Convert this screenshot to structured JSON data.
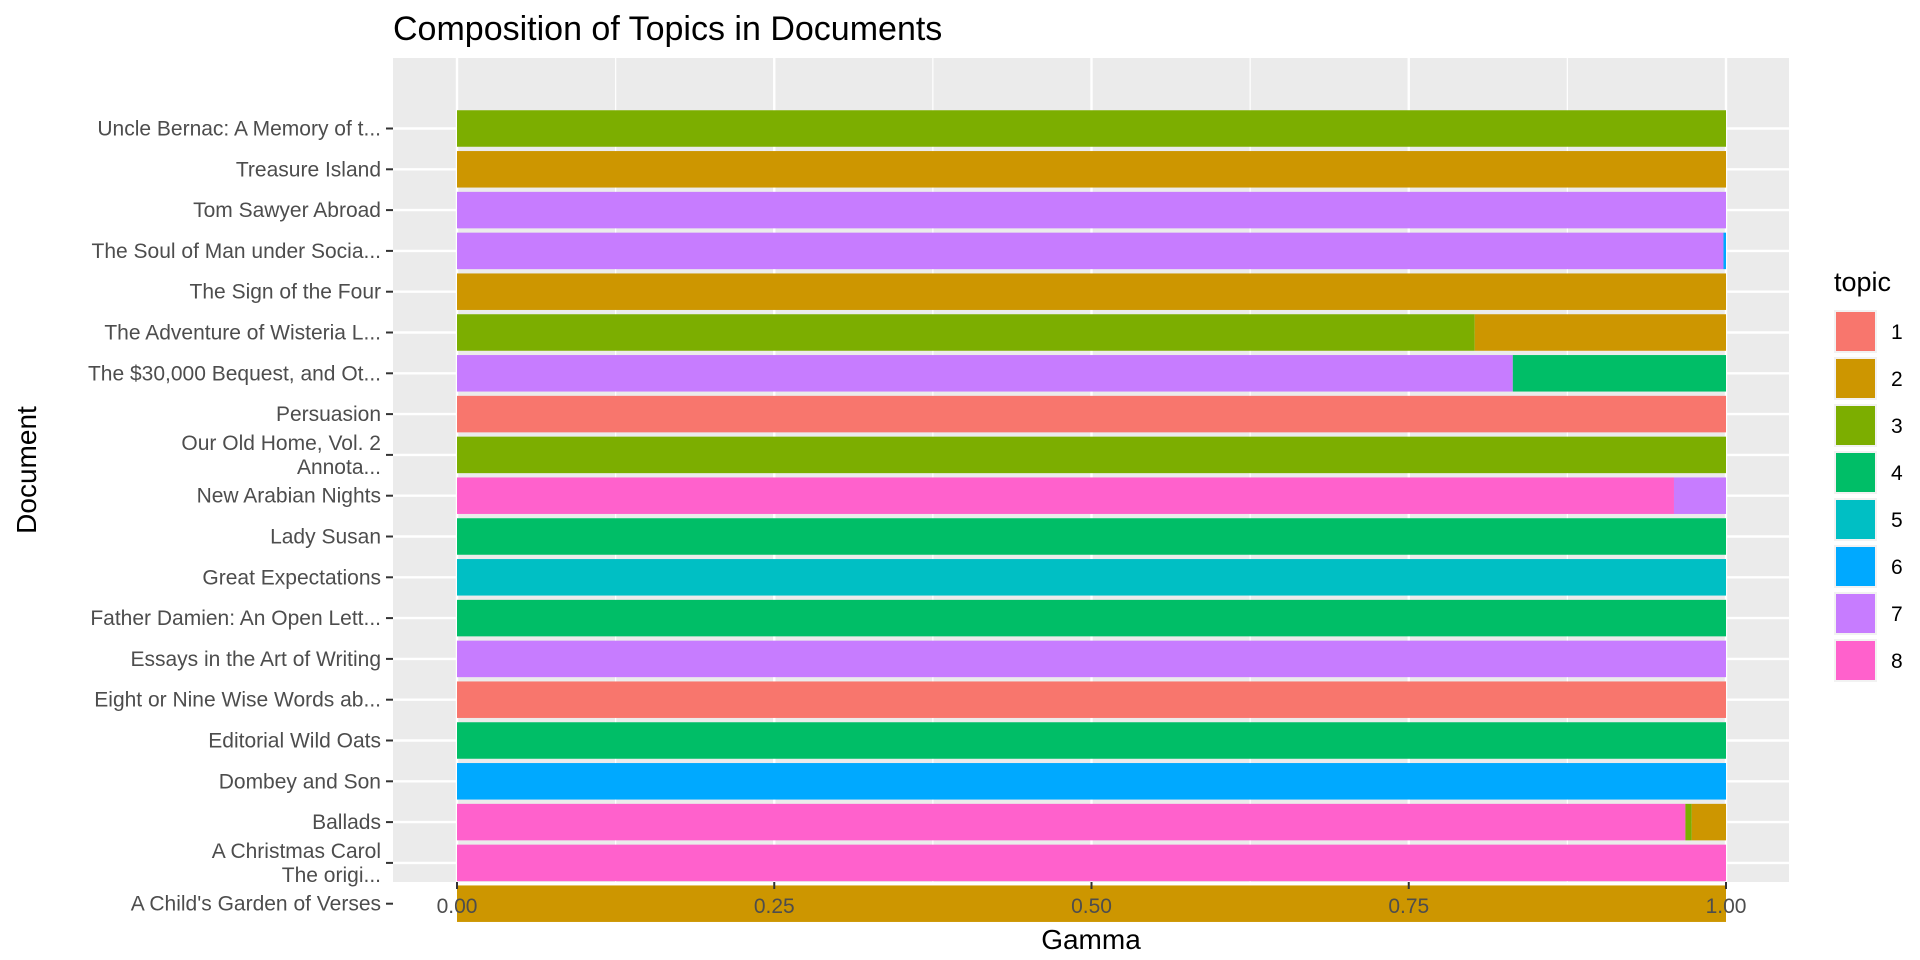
{
  "chart_data": {
    "type": "bar",
    "orientation": "horizontal",
    "stacked": true,
    "title": "Composition of Topics in Documents",
    "xlabel": "Gamma",
    "ylabel": "Document",
    "xlim": [
      0,
      1
    ],
    "xticks": [
      "0.00",
      "0.25",
      "0.50",
      "0.75",
      "1.00"
    ],
    "grid": true,
    "legend": {
      "title": "topic",
      "position": "right",
      "entries": [
        {
          "topic": "1",
          "color": "#F8766D"
        },
        {
          "topic": "2",
          "color": "#CD9600"
        },
        {
          "topic": "3",
          "color": "#7CAE00"
        },
        {
          "topic": "4",
          "color": "#00BE67"
        },
        {
          "topic": "5",
          "color": "#00BFC4"
        },
        {
          "topic": "6",
          "color": "#00A9FF"
        },
        {
          "topic": "7",
          "color": "#C77CFF"
        },
        {
          "topic": "8",
          "color": "#FF61CC"
        }
      ]
    },
    "categories": [
      "Uncle Bernac: A Memory of t...",
      "Treasure Island",
      "Tom Sawyer Abroad",
      "The Soul of Man under Socia...",
      "The Sign of the Four",
      "The Adventure of Wisteria L...",
      "The $30,000 Bequest, and Ot...",
      "Persuasion",
      "Our Old Home, Vol. 2\nAnnota...",
      "New Arabian Nights",
      "Lady Susan",
      "Great Expectations",
      "Father Damien: An Open Lett...",
      "Essays in the Art of Writing",
      "Eight or Nine Wise Words ab...",
      "Editorial Wild Oats",
      "Dombey and Son",
      "Ballads",
      "A Christmas Carol\nThe origi...",
      "A Child's Garden of Verses"
    ],
    "segments": [
      [
        {
          "topic": "3",
          "value": 1.0
        }
      ],
      [
        {
          "topic": "2",
          "value": 1.0
        }
      ],
      [
        {
          "topic": "7",
          "value": 1.0
        }
      ],
      [
        {
          "topic": "7",
          "value": 0.998
        },
        {
          "topic": "6",
          "value": 0.002
        }
      ],
      [
        {
          "topic": "2",
          "value": 1.0
        }
      ],
      [
        {
          "topic": "3",
          "value": 0.802
        },
        {
          "topic": "2",
          "value": 0.198
        }
      ],
      [
        {
          "topic": "7",
          "value": 0.832
        },
        {
          "topic": "4",
          "value": 0.168
        }
      ],
      [
        {
          "topic": "1",
          "value": 1.0
        }
      ],
      [
        {
          "topic": "3",
          "value": 1.0
        }
      ],
      [
        {
          "topic": "8",
          "value": 0.959
        },
        {
          "topic": "7",
          "value": 0.041
        }
      ],
      [
        {
          "topic": "4",
          "value": 1.0
        }
      ],
      [
        {
          "topic": "5",
          "value": 1.0
        }
      ],
      [
        {
          "topic": "4",
          "value": 1.0
        }
      ],
      [
        {
          "topic": "7",
          "value": 1.0
        }
      ],
      [
        {
          "topic": "1",
          "value": 1.0
        }
      ],
      [
        {
          "topic": "4",
          "value": 1.0
        }
      ],
      [
        {
          "topic": "6",
          "value": 1.0
        }
      ],
      [
        {
          "topic": "8",
          "value": 0.968
        },
        {
          "topic": "3",
          "value": 0.005
        },
        {
          "topic": "2",
          "value": 0.027
        }
      ],
      [
        {
          "topic": "8",
          "value": 1.0
        }
      ],
      [
        {
          "topic": "2",
          "value": 1.0
        }
      ]
    ]
  }
}
